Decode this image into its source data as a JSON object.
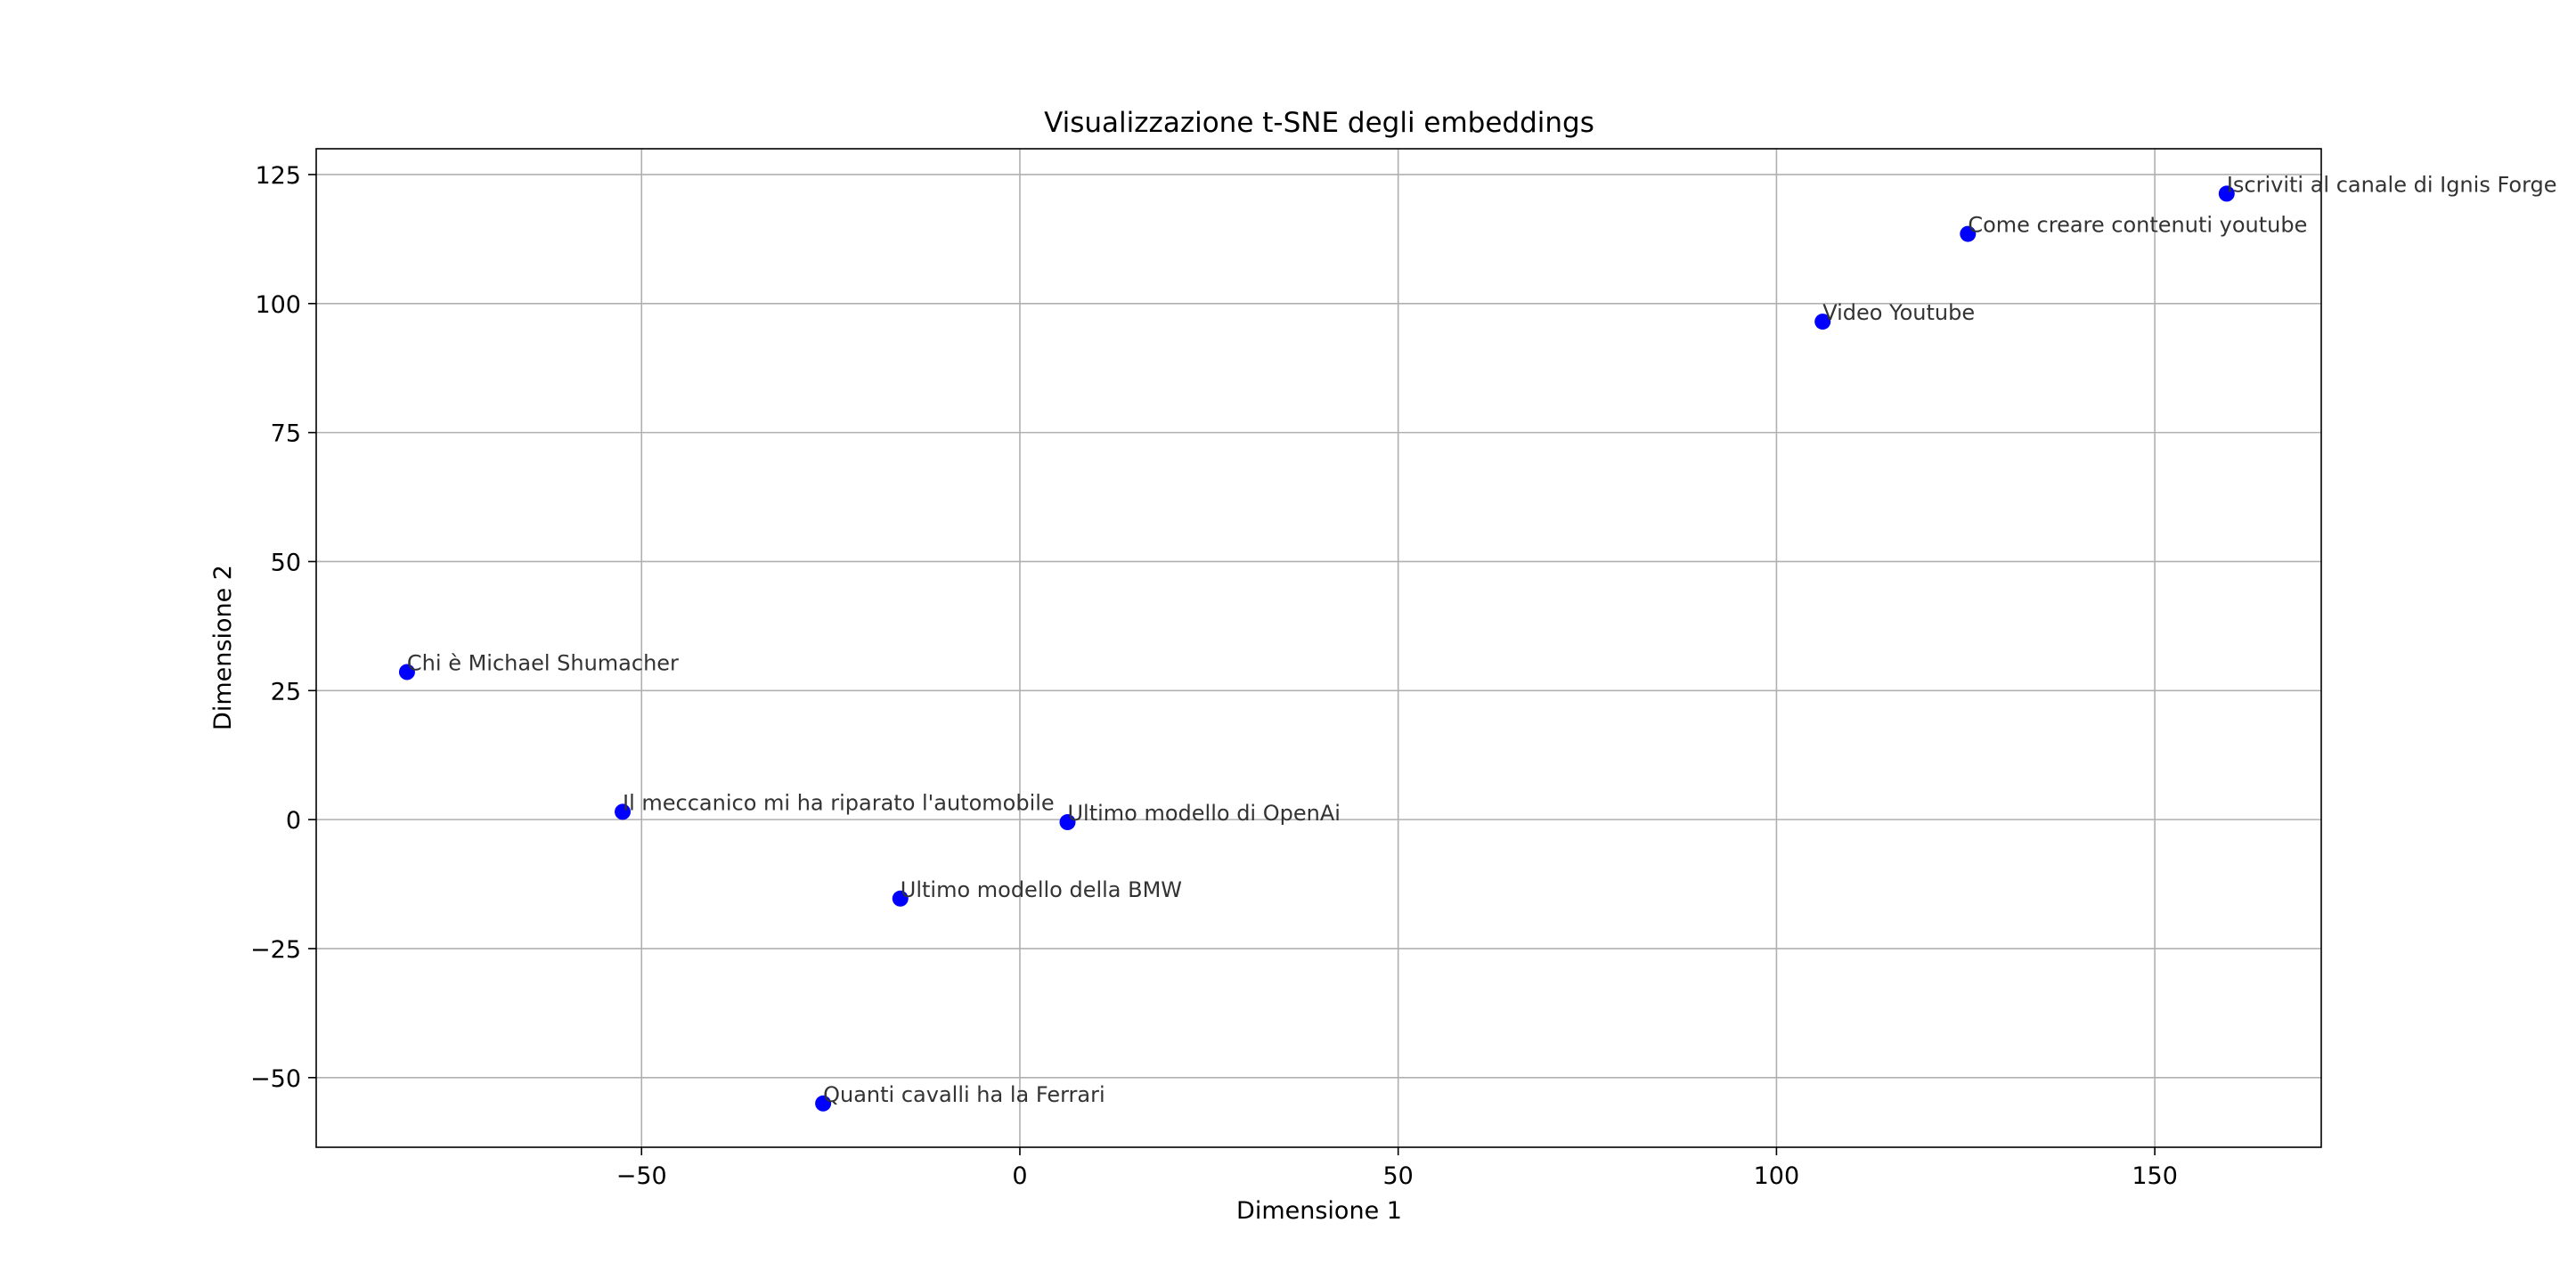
{
  "chart_data": {
    "type": "scatter",
    "title": "Visualizzazione t-SNE degli embeddings",
    "xlabel": "Dimensione 1",
    "ylabel": "Dimensione 2",
    "xlim": [
      -93,
      172
    ],
    "ylim": [
      -63.5,
      130
    ],
    "xticks": [
      -50,
      0,
      50,
      100,
      150
    ],
    "xtick_labels": [
      "−50",
      "0",
      "50",
      "100",
      "150"
    ],
    "yticks": [
      -50,
      -25,
      0,
      25,
      50,
      75,
      100,
      125
    ],
    "ytick_labels": [
      "−50",
      "−25",
      "0",
      "25",
      "50",
      "75",
      "100",
      "125"
    ],
    "grid": true,
    "legend": "none",
    "point_color": "#0000ff",
    "points": [
      {
        "x": 159.5,
        "y": 121.3,
        "label": "Iscriviti al canale di Ignis Forge"
      },
      {
        "x": 125.3,
        "y": 113.5,
        "label": "Come creare contenuti youtube"
      },
      {
        "x": 106.1,
        "y": 96.5,
        "label": "Video Youtube"
      },
      {
        "x": -81.0,
        "y": 28.6,
        "label": "Chi è Michael Shumacher"
      },
      {
        "x": -52.5,
        "y": 1.5,
        "label": "Il meccanico mi ha riparato l'automobile"
      },
      {
        "x": 6.3,
        "y": -0.5,
        "label": "Ultimo modello di OpenAi"
      },
      {
        "x": -15.8,
        "y": -15.3,
        "label": "Ultimo modello della BMW"
      },
      {
        "x": -26.0,
        "y": -55.0,
        "label": "Quanti cavalli ha la Ferrari"
      }
    ]
  }
}
